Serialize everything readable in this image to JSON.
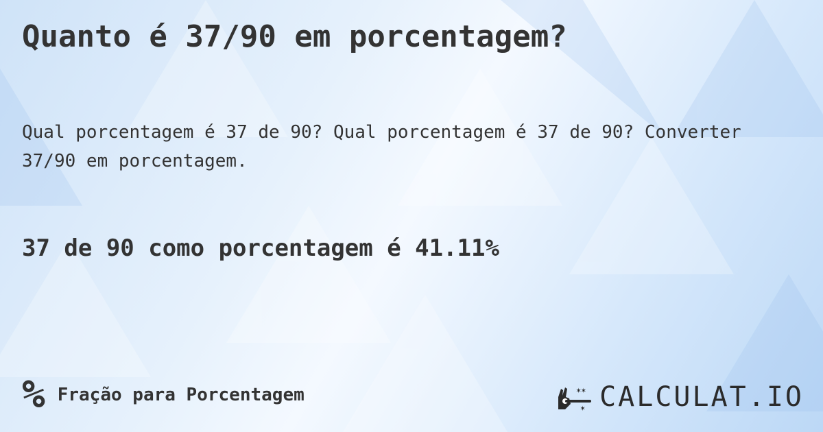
{
  "title": "Quanto é 37/90 em porcentagem?",
  "subtitle": "Qual porcentagem é 37 de 90? Qual porcentagem é 37 de 90? Converter 37/90 em porcentagem.",
  "answer": "37 de 90 como porcentagem é 41.11%",
  "footer": {
    "icon": "percent-icon",
    "icon_glyph": "%",
    "category": "Fração para Porcentagem"
  },
  "logo": {
    "text": "CALCULAT.IO",
    "icon": "magic-hand-wand-icon"
  }
}
